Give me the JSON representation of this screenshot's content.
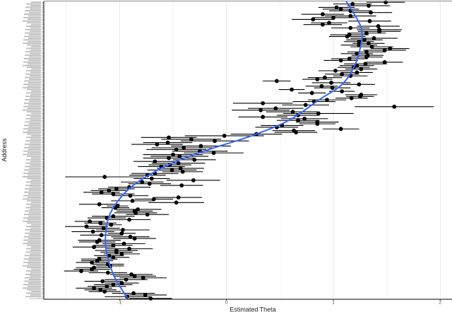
{
  "chart_data": {
    "type": "scatter",
    "title": "",
    "xlabel": "Estimated Theta",
    "ylabel": "Address",
    "xlim": [
      -1.71,
      2.11
    ],
    "x_ticks": [
      -1,
      0,
      1,
      2
    ],
    "x_minor_grid": [
      -1.5,
      -0.5,
      0.5,
      1.5
    ],
    "grid": true,
    "last_category_label": "Trump 2019",
    "point_color": "#000000",
    "errorbar_color": "#000000",
    "smooth_color": "#3366FF",
    "points_theta_halfwidth": [
      [
        1.49,
        0.18
      ],
      [
        1.18,
        0.18
      ],
      [
        1.33,
        0.2
      ],
      [
        1.03,
        0.17
      ],
      [
        1.07,
        0.17
      ],
      [
        1.16,
        0.2
      ],
      [
        1.35,
        0.2
      ],
      [
        0.9,
        0.2
      ],
      [
        1.16,
        0.24
      ],
      [
        1.0,
        0.2
      ],
      [
        0.81,
        0.2
      ],
      [
        1.34,
        0.2
      ],
      [
        0.96,
        0.17
      ],
      [
        0.9,
        0.18
      ],
      [
        1.42,
        0.2
      ],
      [
        1.16,
        0.18
      ],
      [
        1.43,
        0.21
      ],
      [
        1.43,
        0.2
      ],
      [
        1.31,
        0.18
      ],
      [
        1.15,
        0.18
      ],
      [
        1.13,
        0.17
      ],
      [
        1.38,
        0.22
      ],
      [
        1.29,
        0.17
      ],
      [
        1.24,
        0.14
      ],
      [
        1.33,
        0.15
      ],
      [
        1.24,
        0.17
      ],
      [
        1.36,
        0.2
      ],
      [
        1.53,
        0.18
      ],
      [
        1.48,
        0.2
      ],
      [
        1.31,
        0.18
      ],
      [
        1.22,
        0.15
      ],
      [
        1.32,
        0.15
      ],
      [
        1.31,
        0.15
      ],
      [
        1.15,
        0.17
      ],
      [
        1.07,
        0.16
      ],
      [
        1.48,
        0.17
      ],
      [
        1.3,
        0.2
      ],
      [
        1.22,
        0.16
      ],
      [
        1.19,
        0.15
      ],
      [
        1.26,
        0.15
      ],
      [
        1.02,
        0.16
      ],
      [
        1.22,
        0.15
      ],
      [
        1.08,
        0.16
      ],
      [
        1.16,
        0.16
      ],
      [
        0.92,
        0.16
      ],
      [
        0.85,
        0.14
      ],
      [
        0.47,
        0.13
      ],
      [
        0.98,
        0.18
      ],
      [
        1.24,
        0.15
      ],
      [
        0.89,
        0.15
      ],
      [
        0.99,
        0.17
      ],
      [
        0.61,
        0.12
      ],
      [
        1.08,
        0.12
      ],
      [
        0.8,
        0.13
      ],
      [
        1.26,
        0.15
      ],
      [
        1.25,
        0.13
      ],
      [
        1.17,
        0.15
      ],
      [
        0.94,
        0.18
      ],
      [
        0.82,
        0.2
      ],
      [
        0.34,
        0.28
      ],
      [
        0.74,
        0.22
      ],
      [
        1.57,
        0.37
      ],
      [
        0.46,
        0.26
      ],
      [
        0.32,
        0.27
      ],
      [
        0.62,
        0.25
      ],
      [
        0.86,
        0.33
      ],
      [
        0.67,
        0.2
      ],
      [
        0.34,
        0.23
      ],
      [
        0.73,
        0.22
      ],
      [
        0.67,
        0.2
      ],
      [
        0.85,
        0.2
      ],
      [
        0.85,
        0.17
      ],
      [
        0.52,
        0.2
      ],
      [
        0.47,
        0.2
      ],
      [
        1.07,
        0.17
      ],
      [
        0.63,
        0.2
      ],
      [
        0.65,
        0.2
      ],
      [
        0.28,
        0.24
      ],
      [
        -0.02,
        0.37
      ],
      [
        -0.54,
        0.26
      ],
      [
        -0.33,
        0.28
      ],
      [
        -0.11,
        0.32
      ],
      [
        -0.55,
        0.23
      ],
      [
        -0.65,
        0.24
      ],
      [
        -0.24,
        0.28
      ],
      [
        -0.4,
        0.3
      ],
      [
        -0.47,
        0.28
      ],
      [
        -0.25,
        0.26
      ],
      [
        -0.12,
        0.28
      ],
      [
        -0.5,
        0.28
      ],
      [
        -0.44,
        0.27
      ],
      [
        -0.54,
        0.24
      ],
      [
        -0.3,
        0.2
      ],
      [
        -0.67,
        0.2
      ],
      [
        -0.45,
        0.25
      ],
      [
        -0.53,
        0.2
      ],
      [
        -0.61,
        0.22
      ],
      [
        -0.43,
        0.22
      ],
      [
        -0.51,
        0.23
      ],
      [
        -0.41,
        0.19
      ],
      [
        -0.67,
        0.22
      ],
      [
        -0.74,
        0.17
      ],
      [
        -1.14,
        0.37
      ],
      [
        -0.7,
        0.17
      ],
      [
        -0.31,
        0.25
      ],
      [
        -0.79,
        0.2
      ],
      [
        -0.72,
        0.2
      ],
      [
        -0.42,
        0.2
      ],
      [
        -0.91,
        0.2
      ],
      [
        -1.03,
        0.17
      ],
      [
        -1.1,
        0.17
      ],
      [
        -1.17,
        0.17
      ],
      [
        -1.06,
        0.2
      ],
      [
        -0.9,
        0.17
      ],
      [
        -0.45,
        0.22
      ],
      [
        -0.68,
        0.18
      ],
      [
        -0.88,
        0.2
      ],
      [
        -0.47,
        0.26
      ],
      [
        -1.19,
        0.19
      ],
      [
        -1.02,
        0.1
      ],
      [
        -1.04,
        0.13
      ],
      [
        -0.83,
        0.22
      ],
      [
        -0.86,
        0.17
      ],
      [
        -0.85,
        0.2
      ],
      [
        -0.74,
        0.2
      ],
      [
        -1.06,
        0.2
      ],
      [
        -1.12,
        0.18
      ],
      [
        -0.91,
        0.2
      ],
      [
        -1.28,
        0.14
      ],
      [
        -1.18,
        0.15
      ],
      [
        -1.08,
        0.1
      ],
      [
        -1.31,
        0.2
      ],
      [
        -1.15,
        0.15
      ],
      [
        -0.97,
        0.25
      ],
      [
        -1.25,
        0.2
      ],
      [
        -0.98,
        0.13
      ],
      [
        -1.17,
        0.2
      ],
      [
        -0.9,
        0.18
      ],
      [
        -0.86,
        0.2
      ],
      [
        -1.19,
        0.2
      ],
      [
        -1.21,
        0.17
      ],
      [
        -0.96,
        0.2
      ],
      [
        -1.06,
        0.18
      ],
      [
        -1.24,
        0.2
      ],
      [
        -0.91,
        0.22
      ],
      [
        -1.03,
        0.2
      ],
      [
        -1.03,
        0.15
      ],
      [
        -0.98,
        0.17
      ],
      [
        -1.1,
        0.14
      ],
      [
        -1.06,
        0.15
      ],
      [
        -1.19,
        0.17
      ],
      [
        -1.21,
        0.15
      ],
      [
        -1.26,
        0.15
      ],
      [
        -1.11,
        0.15
      ],
      [
        -1.09,
        0.13
      ],
      [
        -1.24,
        0.17
      ],
      [
        -1.26,
        0.17
      ],
      [
        -1.36,
        0.16
      ],
      [
        -1.11,
        0.18
      ],
      [
        -0.89,
        0.2
      ],
      [
        -0.86,
        0.2
      ],
      [
        -0.78,
        0.22
      ],
      [
        -0.94,
        0.2
      ],
      [
        -1.16,
        0.17
      ],
      [
        -0.98,
        0.16
      ],
      [
        -1.06,
        0.18
      ],
      [
        -1.12,
        0.18
      ],
      [
        -1.24,
        0.17
      ],
      [
        -1.18,
        0.15
      ],
      [
        -1.14,
        0.15
      ],
      [
        -0.87,
        0.2
      ],
      [
        -0.76,
        0.2
      ],
      [
        -0.93,
        0.21
      ],
      [
        -0.71,
        0.2
      ]
    ],
    "smooth_row_theta": [
      [
        0,
        1.12
      ],
      [
        15,
        1.26
      ],
      [
        27,
        1.25
      ],
      [
        39,
        1.18
      ],
      [
        48,
        1.07
      ],
      [
        56,
        0.87
      ],
      [
        68,
        0.58
      ],
      [
        77,
        0.22
      ],
      [
        84,
        -0.14
      ],
      [
        92,
        -0.5
      ],
      [
        100,
        -0.75
      ],
      [
        108,
        -0.93
      ],
      [
        120,
        -1.08
      ],
      [
        132,
        -1.13
      ],
      [
        144,
        -1.12
      ],
      [
        157,
        -1.05
      ],
      [
        170,
        -0.92
      ]
    ]
  }
}
